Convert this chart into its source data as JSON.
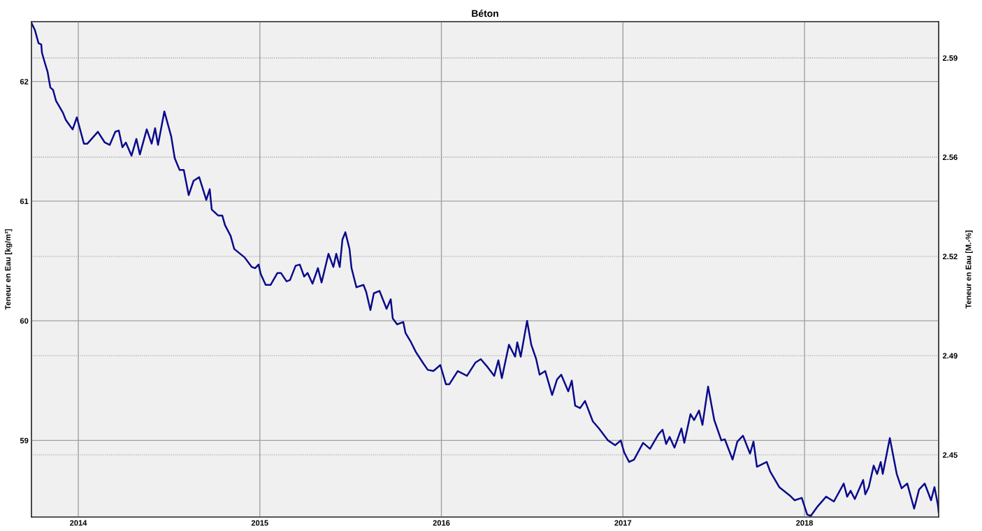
{
  "chart_data": {
    "type": "line",
    "title": "Béton",
    "ylabel": "Teneur en Eau [kg/m³]",
    "y2label": "Teneur en Eau [M.-%]",
    "xlim": [
      2013.742,
      2018.739
    ],
    "xticks": [
      2014,
      2015,
      2016,
      2017,
      2018
    ],
    "ylim": [
      58.36,
      62.5
    ],
    "yticks": [
      59,
      60,
      61,
      62
    ],
    "y2lim": [
      2.4309,
      2.6031
    ],
    "y2ticks": [
      {
        "value": 2.4525,
        "label": "2.45"
      },
      {
        "value": 2.487,
        "label": "2.49"
      },
      {
        "value": 2.5215,
        "label": "2.52"
      },
      {
        "value": 2.556,
        "label": "2.56"
      },
      {
        "value": 2.5905,
        "label": "2.59"
      }
    ],
    "grid": true,
    "marker": "none",
    "line_style": "solid",
    "series": [
      {
        "color": "#0a0a8c",
        "x": [
          2013.742,
          2013.761,
          2013.781,
          2013.796,
          2013.8,
          2013.815,
          2013.831,
          2013.846,
          2013.861,
          2013.877,
          2013.892,
          2013.915,
          2013.931,
          2013.954,
          2013.969,
          2013.992,
          2014.031,
          2014.05,
          2014.108,
          2014.146,
          2014.173,
          2014.204,
          2014.223,
          2014.243,
          2014.262,
          2014.293,
          2014.32,
          2014.339,
          2014.377,
          2014.404,
          2014.423,
          2014.439,
          2014.474,
          2014.512,
          2014.531,
          2014.558,
          2014.581,
          2014.608,
          2014.635,
          2014.666,
          2014.705,
          2014.724,
          2014.735,
          2014.77,
          2014.793,
          2014.808,
          2014.839,
          2014.859,
          2014.916,
          2014.955,
          2014.974,
          2014.993,
          2015.005,
          2015.032,
          2015.059,
          2015.097,
          2015.116,
          2015.147,
          2015.166,
          2015.197,
          2015.22,
          2015.244,
          2015.263,
          2015.29,
          2015.32,
          2015.34,
          2015.378,
          2015.405,
          2015.421,
          2015.44,
          2015.455,
          2015.471,
          2015.494,
          2015.505,
          2015.532,
          2015.571,
          2015.586,
          2015.609,
          2015.628,
          2015.659,
          2015.698,
          2015.721,
          2015.732,
          2015.756,
          2015.79,
          2015.802,
          2015.833,
          2015.859,
          2015.902,
          2015.925,
          2015.956,
          2015.994,
          2016.025,
          2016.044,
          2016.09,
          2016.141,
          2016.187,
          2016.217,
          2016.256,
          2016.291,
          2016.314,
          2016.333,
          2016.372,
          2016.406,
          2016.418,
          2016.437,
          2016.472,
          2016.495,
          2016.522,
          2016.541,
          2016.572,
          2016.61,
          2016.637,
          2016.66,
          2016.699,
          2016.718,
          2016.737,
          2016.764,
          2016.791,
          2016.834,
          2016.868,
          2016.918,
          2016.957,
          2016.988,
          2017.007,
          2017.034,
          2017.061,
          2017.111,
          2017.149,
          2017.195,
          2017.218,
          2017.238,
          2017.257,
          2017.284,
          2017.322,
          2017.338,
          2017.372,
          2017.392,
          2017.419,
          2017.438,
          2017.469,
          2017.503,
          2017.542,
          2017.561,
          2017.604,
          2017.63,
          2017.661,
          2017.7,
          2017.719,
          2017.738,
          2017.792,
          2017.811,
          2017.861,
          2017.919,
          2017.946,
          2017.985,
          2018.015,
          2018.035,
          2018.073,
          2018.119,
          2018.162,
          2018.216,
          2018.235,
          2018.254,
          2018.277,
          2018.323,
          2018.335,
          2018.354,
          2018.381,
          2018.4,
          2018.42,
          2018.431,
          2018.47,
          2018.508,
          2018.535,
          2018.566,
          2018.604,
          2018.631,
          2018.662,
          2018.697,
          2018.716,
          2018.735,
          2018.739
        ],
        "values": [
          62.49,
          62.43,
          62.32,
          62.31,
          62.24,
          62.16,
          62.08,
          61.95,
          61.93,
          61.84,
          61.8,
          61.74,
          61.68,
          61.63,
          61.6,
          61.7,
          61.48,
          61.48,
          61.58,
          61.49,
          61.47,
          61.58,
          61.59,
          61.45,
          61.49,
          61.38,
          61.52,
          61.39,
          61.6,
          61.48,
          61.61,
          61.47,
          61.75,
          61.54,
          61.36,
          61.26,
          61.26,
          61.05,
          61.17,
          61.2,
          61.01,
          61.1,
          60.93,
          60.88,
          60.88,
          60.8,
          60.71,
          60.6,
          60.53,
          60.45,
          60.44,
          60.47,
          60.39,
          60.3,
          60.3,
          60.4,
          60.4,
          60.33,
          60.34,
          60.46,
          60.47,
          60.37,
          60.4,
          60.31,
          60.44,
          60.32,
          60.56,
          60.45,
          60.56,
          60.45,
          60.68,
          60.74,
          60.6,
          60.44,
          60.28,
          60.3,
          60.24,
          60.09,
          60.23,
          60.25,
          60.1,
          60.18,
          60.02,
          59.97,
          59.99,
          59.9,
          59.82,
          59.74,
          59.64,
          59.59,
          59.58,
          59.63,
          59.47,
          59.47,
          59.58,
          59.54,
          59.65,
          59.68,
          59.61,
          59.54,
          59.67,
          59.52,
          59.8,
          59.7,
          59.82,
          59.7,
          60.0,
          59.8,
          59.68,
          59.55,
          59.58,
          59.38,
          59.51,
          59.55,
          59.41,
          59.5,
          59.29,
          59.27,
          59.33,
          59.16,
          59.1,
          59.0,
          58.96,
          59.0,
          58.9,
          58.82,
          58.84,
          58.98,
          58.93,
          59.05,
          59.09,
          58.97,
          59.03,
          58.94,
          59.1,
          58.98,
          59.22,
          59.17,
          59.25,
          59.13,
          59.45,
          59.17,
          59.0,
          59.01,
          58.84,
          58.99,
          59.04,
          58.89,
          58.99,
          58.78,
          58.82,
          58.74,
          58.61,
          58.54,
          58.5,
          58.52,
          58.38,
          58.37,
          58.45,
          58.53,
          58.49,
          58.64,
          58.53,
          58.58,
          58.51,
          58.67,
          58.55,
          58.61,
          58.79,
          58.72,
          58.82,
          58.72,
          59.02,
          58.72,
          58.6,
          58.64,
          58.43,
          58.59,
          58.64,
          58.5,
          58.61,
          58.46,
          58.4
        ]
      }
    ]
  }
}
